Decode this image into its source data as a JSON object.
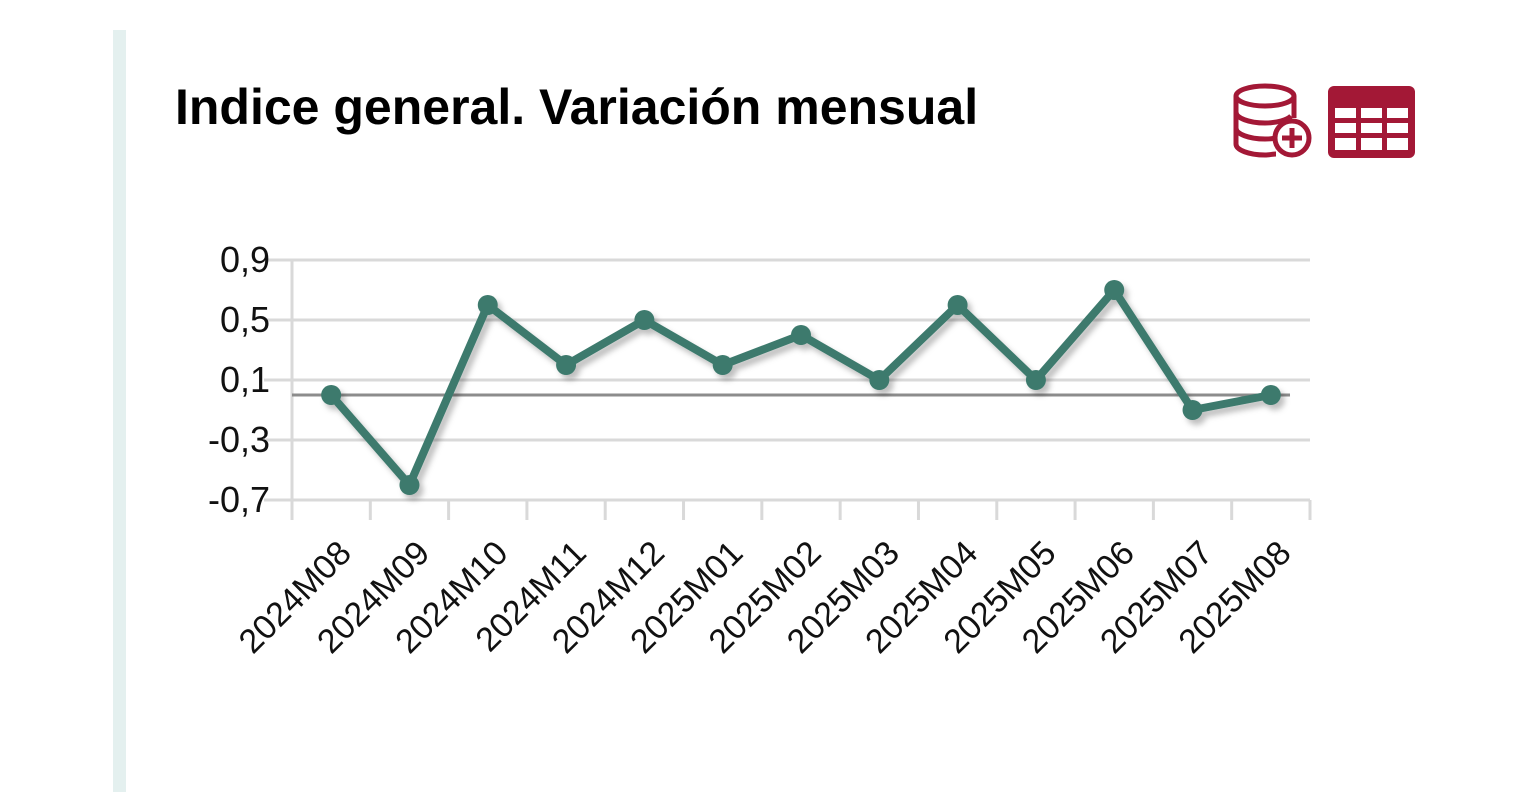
{
  "title": "Indice general. Variación mensual",
  "icons": {
    "database": "database-add-icon",
    "table": "table-icon"
  },
  "colors": {
    "series": "#3d7a6d",
    "icons": "#a31836",
    "grid": "#d9d9d9",
    "zero_line": "#8c8c8c",
    "side_bar": "#e4f0ef"
  },
  "chart_data": {
    "type": "line",
    "title": "Indice general. Variación mensual",
    "xlabel": "",
    "ylabel": "",
    "categories": [
      "2024M08",
      "2024M09",
      "2024M10",
      "2024M11",
      "2024M12",
      "2025M01",
      "2025M02",
      "2025M03",
      "2025M04",
      "2025M05",
      "2025M06",
      "2025M07",
      "2025M08"
    ],
    "series": [
      {
        "name": "Indice general",
        "values": [
          0.0,
          -0.6,
          0.6,
          0.2,
          0.5,
          0.2,
          0.4,
          0.1,
          0.6,
          0.1,
          0.7,
          -0.1,
          0.0
        ]
      }
    ],
    "ylim": [
      -0.7,
      0.9
    ],
    "yticks": [
      0.9,
      0.5,
      0.1,
      -0.3,
      -0.7
    ],
    "ytick_labels": [
      "0,9",
      "0,5",
      "0,1",
      "-0,3",
      "-0,7"
    ],
    "grid": true,
    "reference_line": 0,
    "legend": "none"
  }
}
